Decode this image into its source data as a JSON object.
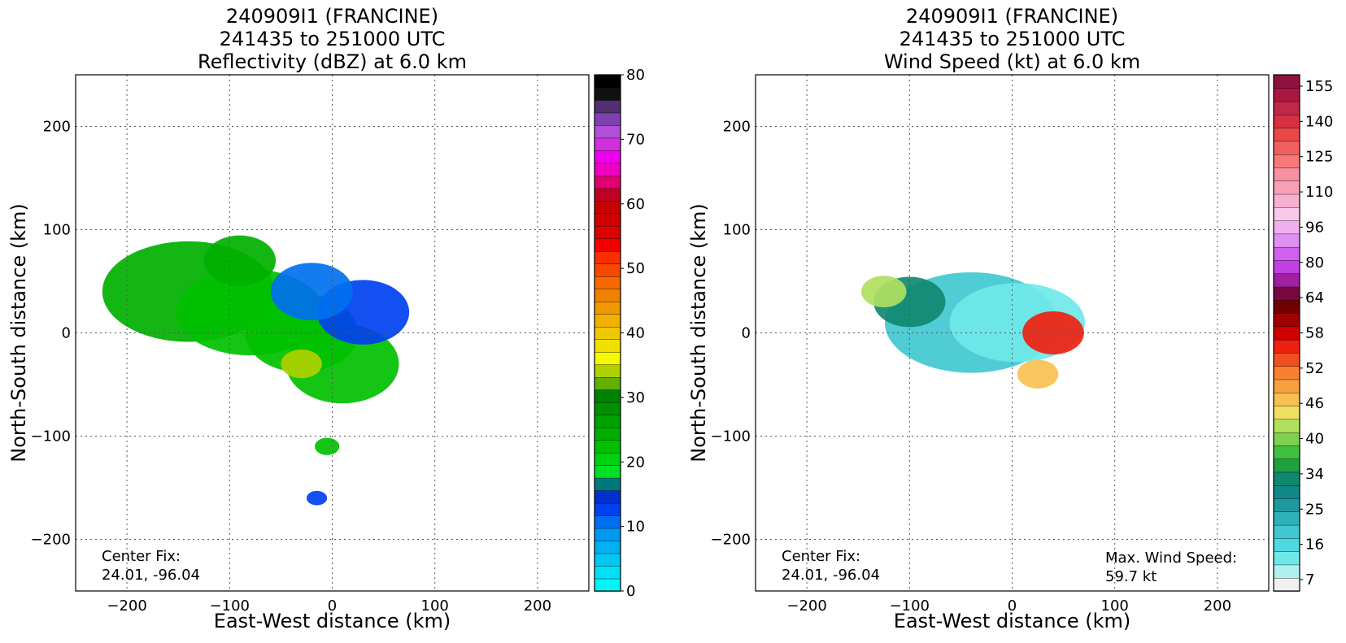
{
  "chart_data": [
    {
      "type": "heatmap",
      "title": [
        "240909I1 (FRANCINE)",
        "241435 to 251000 UTC",
        "Reflectivity (dBZ) at 6.0 km"
      ],
      "xlabel": "East-West distance (km)",
      "ylabel": "North-South distance (km)",
      "xlim": [
        -250,
        250
      ],
      "ylim": [
        -250,
        250
      ],
      "xticks": [
        -200,
        -100,
        0,
        100,
        200
      ],
      "yticks": [
        -200,
        -100,
        0,
        100,
        200
      ],
      "grid": true,
      "annotations": {
        "center_fix_label": "Center Fix:",
        "center_fix_value": "24.01, -96.04"
      },
      "colorbar": {
        "min": 0,
        "max": 80,
        "step": 2.5,
        "tick_values": [
          0,
          10,
          20,
          30,
          40,
          50,
          60,
          70,
          80
        ],
        "tick_labels": [
          "0",
          "10",
          "20",
          "30",
          "40",
          "50",
          "60",
          "70",
          "80"
        ],
        "colors": [
          "#00f5f5",
          "#00e0f0",
          "#00c8f0",
          "#00b0f0",
          "#0098f0",
          "#0070f0",
          "#0040f0",
          "#0030d0",
          "#007880",
          "#00e020",
          "#00d010",
          "#00c000",
          "#00b000",
          "#00a000",
          "#009000",
          "#008000",
          "#60b000",
          "#b0d000",
          "#f8f800",
          "#f0e000",
          "#f0c800",
          "#f0b000",
          "#f09800",
          "#f08000",
          "#f86800",
          "#f84800",
          "#f83000",
          "#f00000",
          "#e00000",
          "#d00000",
          "#c80000",
          "#c00020",
          "#e00070",
          "#f000c0",
          "#f000f0",
          "#d030e0",
          "#b050d8",
          "#8040b0",
          "#503070",
          "#101010",
          "#000000"
        ]
      },
      "echo_regions": [
        {
          "x": -140,
          "y": 40,
          "value": 25
        },
        {
          "x": -80,
          "y": 20,
          "value": 22
        },
        {
          "x": -30,
          "y": 0,
          "value": 22
        },
        {
          "x": 10,
          "y": -30,
          "value": 23
        },
        {
          "x": 30,
          "y": 20,
          "value": 12
        },
        {
          "x": -20,
          "y": 40,
          "value": 11
        },
        {
          "x": -90,
          "y": 70,
          "value": 24
        },
        {
          "x": -5,
          "y": -110,
          "value": 22
        },
        {
          "x": -15,
          "y": -160,
          "value": 12
        },
        {
          "x": -30,
          "y": -30,
          "value": 34
        }
      ]
    },
    {
      "type": "heatmap",
      "title": [
        "240909I1 (FRANCINE)",
        "241435 to 251000 UTC",
        "Wind Speed (kt) at 6.0 km"
      ],
      "xlabel": "East-West distance (km)",
      "ylabel": "North-South distance (km)",
      "xlim": [
        -250,
        250
      ],
      "ylim": [
        -250,
        250
      ],
      "xticks": [
        -200,
        -100,
        0,
        100,
        200
      ],
      "yticks": [
        -200,
        -100,
        0,
        100,
        200
      ],
      "grid": true,
      "annotations": {
        "center_fix_label": "Center Fix:",
        "center_fix_value": "24.01, -96.04",
        "max_wind_label": "Max. Wind Speed:",
        "max_wind_value": "59.7 kt"
      },
      "colorbar": {
        "tick_labels": [
          "7",
          "16",
          "25",
          "34",
          "40",
          "46",
          "52",
          "58",
          "64",
          "80",
          "96",
          "110",
          "125",
          "140",
          "155"
        ],
        "colors": [
          "#f0f0f0",
          "#b0f0f0",
          "#70e8e8",
          "#50d8e0",
          "#40c8d0",
          "#30b0b8",
          "#2098a0",
          "#108888",
          "#108870",
          "#20a040",
          "#40c040",
          "#80d050",
          "#b0e060",
          "#f0e060",
          "#f8c050",
          "#f8a040",
          "#f88030",
          "#f05020",
          "#f02010",
          "#d00000",
          "#a00000",
          "#700000",
          "#780840",
          "#a020a0",
          "#c040e0",
          "#d060f0",
          "#e090f0",
          "#f0b0f0",
          "#f8c8e8",
          "#f8b0d0",
          "#f8a0b8",
          "#f890a0",
          "#f87878",
          "#f06060",
          "#e84848",
          "#d83040",
          "#c02848",
          "#a81840",
          "#901040"
        ]
      },
      "wind_regions": [
        {
          "x": -40,
          "y": 10,
          "value": 22
        },
        {
          "x": 5,
          "y": 10,
          "value": 16
        },
        {
          "x": -100,
          "y": 30,
          "value": 34
        },
        {
          "x": -125,
          "y": 40,
          "value": 42
        },
        {
          "x": 40,
          "y": 0,
          "value": 55
        },
        {
          "x": 25,
          "y": -40,
          "value": 48
        }
      ]
    }
  ]
}
